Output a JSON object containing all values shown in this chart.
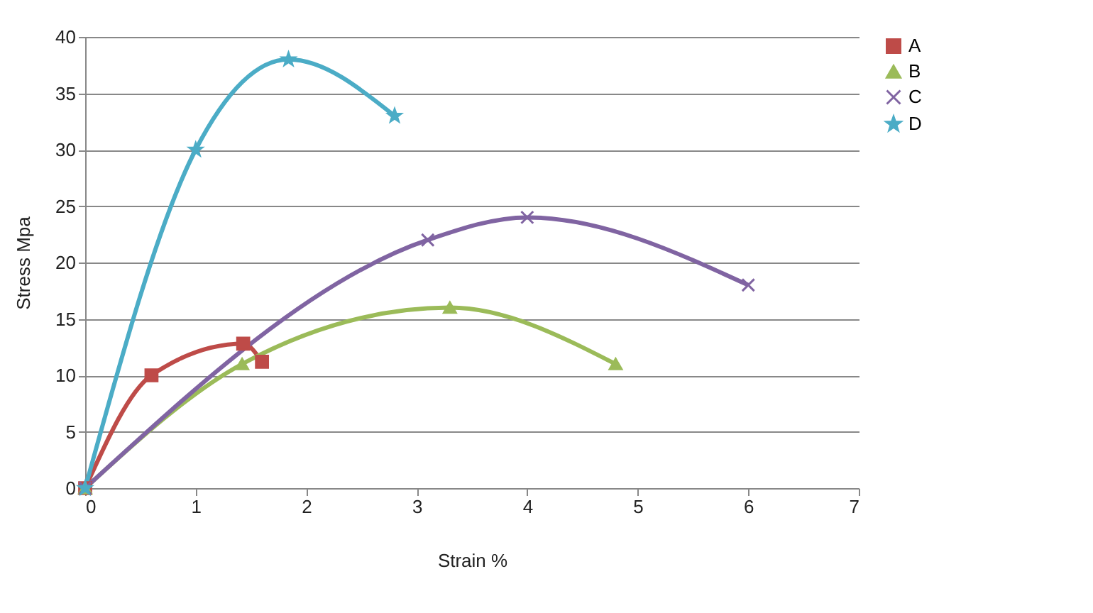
{
  "chart_data": {
    "type": "line",
    "xlabel": "Strain %",
    "ylabel": "Stress Mpa",
    "xlim": [
      0,
      7
    ],
    "xticks": [
      0,
      1,
      2,
      3,
      4,
      5,
      6,
      7
    ],
    "ylim": [
      0,
      40
    ],
    "yticks": [
      0,
      5,
      10,
      15,
      20,
      25,
      30,
      35,
      40
    ],
    "grid": "y",
    "legend": "right",
    "series": [
      {
        "name": "A",
        "color": "#be4b48",
        "marker": "square",
        "x": [
          0,
          0.6,
          1.43,
          1.6
        ],
        "values": [
          0,
          10,
          12.8,
          11.2
        ]
      },
      {
        "name": "B",
        "color": "#9bbb59",
        "marker": "triangle",
        "x": [
          0,
          1.42,
          3.3,
          4.8
        ],
        "values": [
          0,
          11,
          16,
          11
        ]
      },
      {
        "name": "C",
        "color": "#8064a2",
        "marker": "cross",
        "x": [
          0,
          3.1,
          4,
          6
        ],
        "values": [
          0,
          22,
          24,
          18
        ]
      },
      {
        "name": "D",
        "color": "#4bacc6",
        "marker": "star",
        "x": [
          0,
          1,
          1.84,
          2.8
        ],
        "values": [
          0,
          30,
          38,
          33
        ]
      }
    ]
  }
}
